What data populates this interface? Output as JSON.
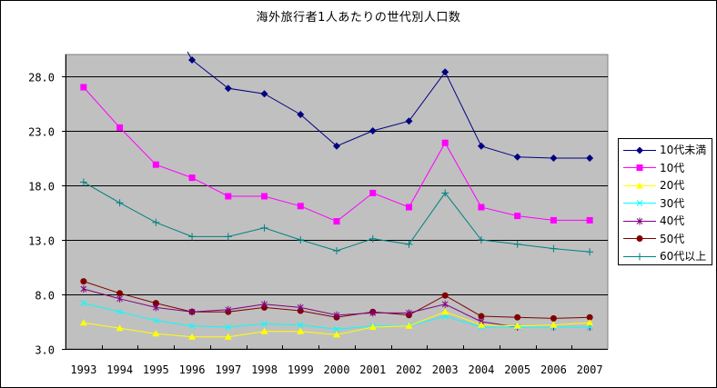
{
  "chart_data": {
    "type": "line",
    "title": "海外旅行者1人あたりの世代別人口数",
    "xlabel": "",
    "ylabel": "",
    "categories": [
      "1993",
      "1994",
      "1995",
      "1996",
      "1997",
      "1998",
      "1999",
      "2000",
      "2001",
      "2002",
      "2003",
      "2004",
      "2005",
      "2006",
      "2007"
    ],
    "ylim": [
      3.0,
      30.0
    ],
    "yticks": [
      "28.0",
      "23.0",
      "18.0",
      "13.0",
      "8.0",
      "3.0"
    ],
    "ytick_values": [
      28,
      23,
      18,
      13,
      8,
      3
    ],
    "grid": true,
    "legend_position": "right",
    "plot_background": "#C0C0C0",
    "series": [
      {
        "name": "10代未満",
        "color": "#000080",
        "marker": "diamond",
        "values": [
          null,
          null,
          null,
          29.5,
          26.9,
          26.4,
          24.5,
          21.6,
          23.0,
          23.9,
          28.4,
          21.6,
          20.6,
          20.5,
          20.5
        ],
        "note": "1993-1995 values exceed axis maximum (clipped)"
      },
      {
        "name": "10代",
        "color": "#FF00FF",
        "marker": "square",
        "values": [
          27.0,
          23.3,
          19.9,
          18.7,
          17.0,
          17.0,
          16.1,
          14.7,
          17.3,
          16.0,
          21.9,
          16.0,
          15.2,
          14.8,
          14.8
        ]
      },
      {
        "name": "20代",
        "color": "#FFFF00",
        "marker": "triangle",
        "values": [
          5.4,
          4.9,
          4.4,
          4.1,
          4.1,
          4.6,
          4.6,
          4.3,
          5.0,
          5.1,
          6.4,
          5.2,
          5.1,
          5.2,
          5.4
        ]
      },
      {
        "name": "30代",
        "color": "#00FFFF",
        "marker": "x",
        "values": [
          7.2,
          6.4,
          5.6,
          5.1,
          5.0,
          5.3,
          5.2,
          4.8,
          5.1,
          5.1,
          6.0,
          5.0,
          5.0,
          5.0,
          5.0
        ]
      },
      {
        "name": "40代",
        "color": "#800080",
        "marker": "star",
        "values": [
          8.5,
          7.6,
          6.8,
          6.4,
          6.6,
          7.1,
          6.8,
          6.1,
          6.3,
          6.3,
          7.1,
          5.5,
          5.0,
          5.0,
          5.0
        ]
      },
      {
        "name": "50代",
        "color": "#800000",
        "marker": "circle",
        "values": [
          9.2,
          8.1,
          7.2,
          6.4,
          6.4,
          6.8,
          6.5,
          5.9,
          6.4,
          6.1,
          7.9,
          6.0,
          5.9,
          5.8,
          5.9
        ]
      },
      {
        "name": "60代以上",
        "color": "#008080",
        "marker": "plus",
        "values": [
          18.3,
          16.4,
          14.6,
          13.3,
          13.3,
          14.1,
          13.0,
          12.0,
          13.1,
          12.6,
          17.3,
          13.0,
          12.6,
          12.2,
          11.9
        ]
      }
    ]
  }
}
